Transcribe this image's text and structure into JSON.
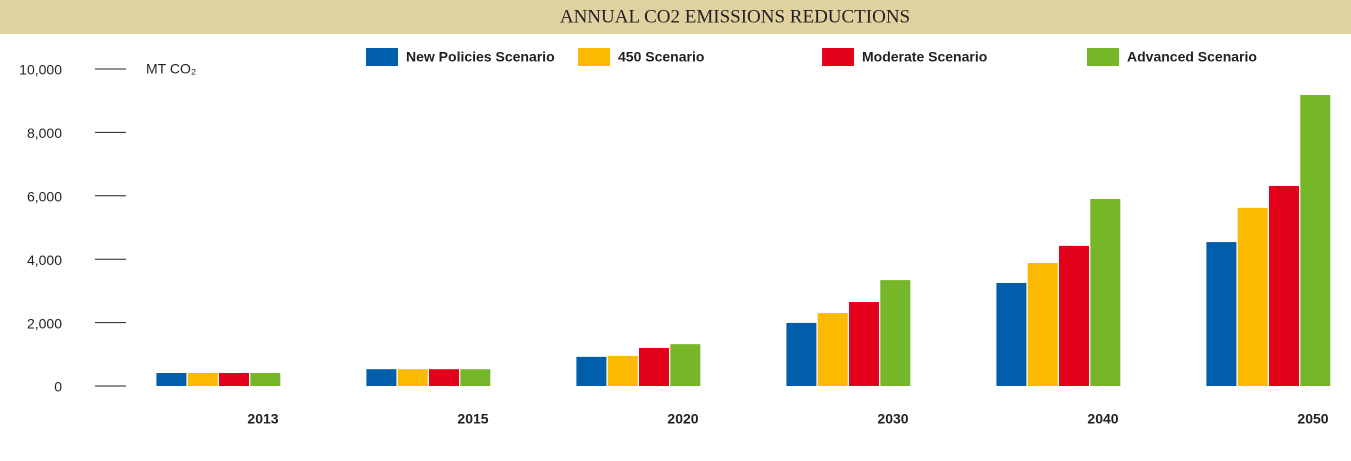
{
  "chart_data": {
    "type": "bar",
    "title": "ANNUAL CO2 EMISSIONS REDUCTIONS",
    "y_label": "MT CO₂",
    "categories": [
      "2013",
      "2015",
      "2020",
      "2030",
      "2040",
      "2050"
    ],
    "series": [
      {
        "name": "New Policies Scenario",
        "color": "#005eab",
        "values": [
          410,
          530,
          920,
          1990,
          3250,
          4540
        ]
      },
      {
        "name": "450 Scenario",
        "color": "#fbb900",
        "values": [
          410,
          530,
          950,
          2300,
          3880,
          5620
        ]
      },
      {
        "name": "Moderate Scenario",
        "color": "#e2001a",
        "values": [
          410,
          530,
          1200,
          2650,
          4420,
          6310
        ]
      },
      {
        "name": "Advanced Scenario",
        "color": "#76b72a",
        "values": [
          410,
          530,
          1320,
          3340,
          5900,
          9180
        ]
      }
    ],
    "ylim": [
      0,
      10000
    ],
    "yticks": [
      0,
      {
        "value": 2000,
        "label": "2,000"
      },
      {
        "value": 4000,
        "label": "4,000"
      },
      {
        "value": 6000,
        "label": "6,000"
      },
      {
        "value": 8000,
        "label": "8,000"
      },
      {
        "value": 10000,
        "label": "10,000"
      }
    ]
  }
}
